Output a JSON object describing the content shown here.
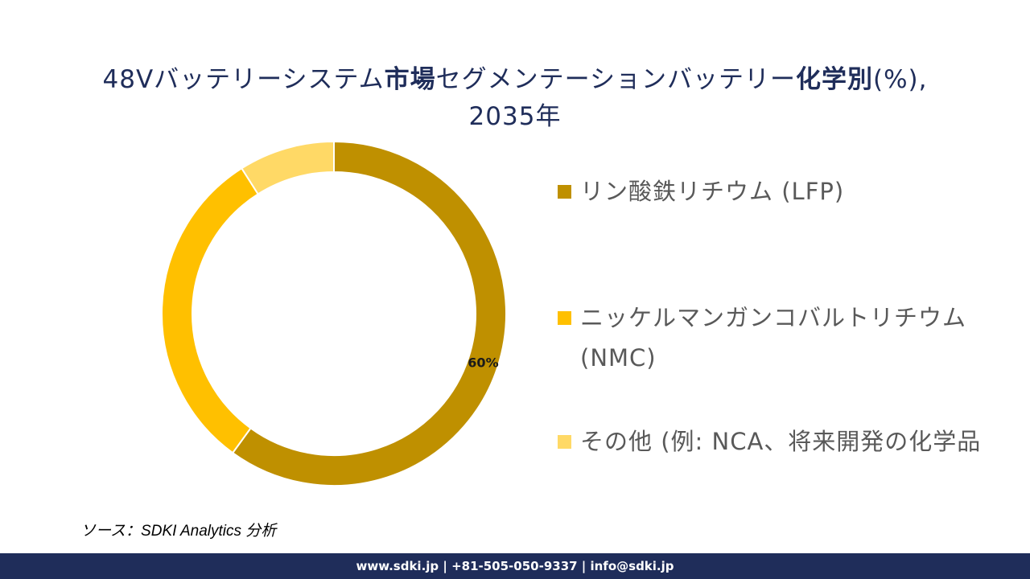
{
  "title": {
    "part1": "48Vバッテリーシステム",
    "part2": "市場",
    "part3": "セグメンテーションバッテリー",
    "part4": "化学別",
    "part5": "(%),",
    "line2": "2035年"
  },
  "chart_data": {
    "type": "pie",
    "donut": true,
    "categories": [
      "リン酸鉄リチウム (LFP)",
      "ニッケルマンガンコバルトリチウム (NMC)",
      "その他 (例: NCA、将来開発の化学品"
    ],
    "values": [
      60,
      31,
      9
    ],
    "colors": [
      "#bf9000",
      "#ffc000",
      "#ffd966"
    ],
    "data_labels": [
      "60%",
      "",
      ""
    ],
    "legend_position": "right"
  },
  "legend": {
    "items": [
      {
        "label_line1": "リン酸鉄リチウム (LFP)",
        "label_line2": "",
        "color": "#bf9000"
      },
      {
        "label_line1": "ニッケルマンガンコバルトリチウム",
        "label_line2": "(NMC)",
        "color": "#ffc000"
      },
      {
        "label_line1": "その他 (例: NCA、将来開発の化学品",
        "label_line2": "",
        "color": "#ffd966"
      }
    ]
  },
  "source": "ソース：SDKI Analytics 分析",
  "footer": "www.sdki.jp | +81-505-050-9337 | info@sdki.jp"
}
